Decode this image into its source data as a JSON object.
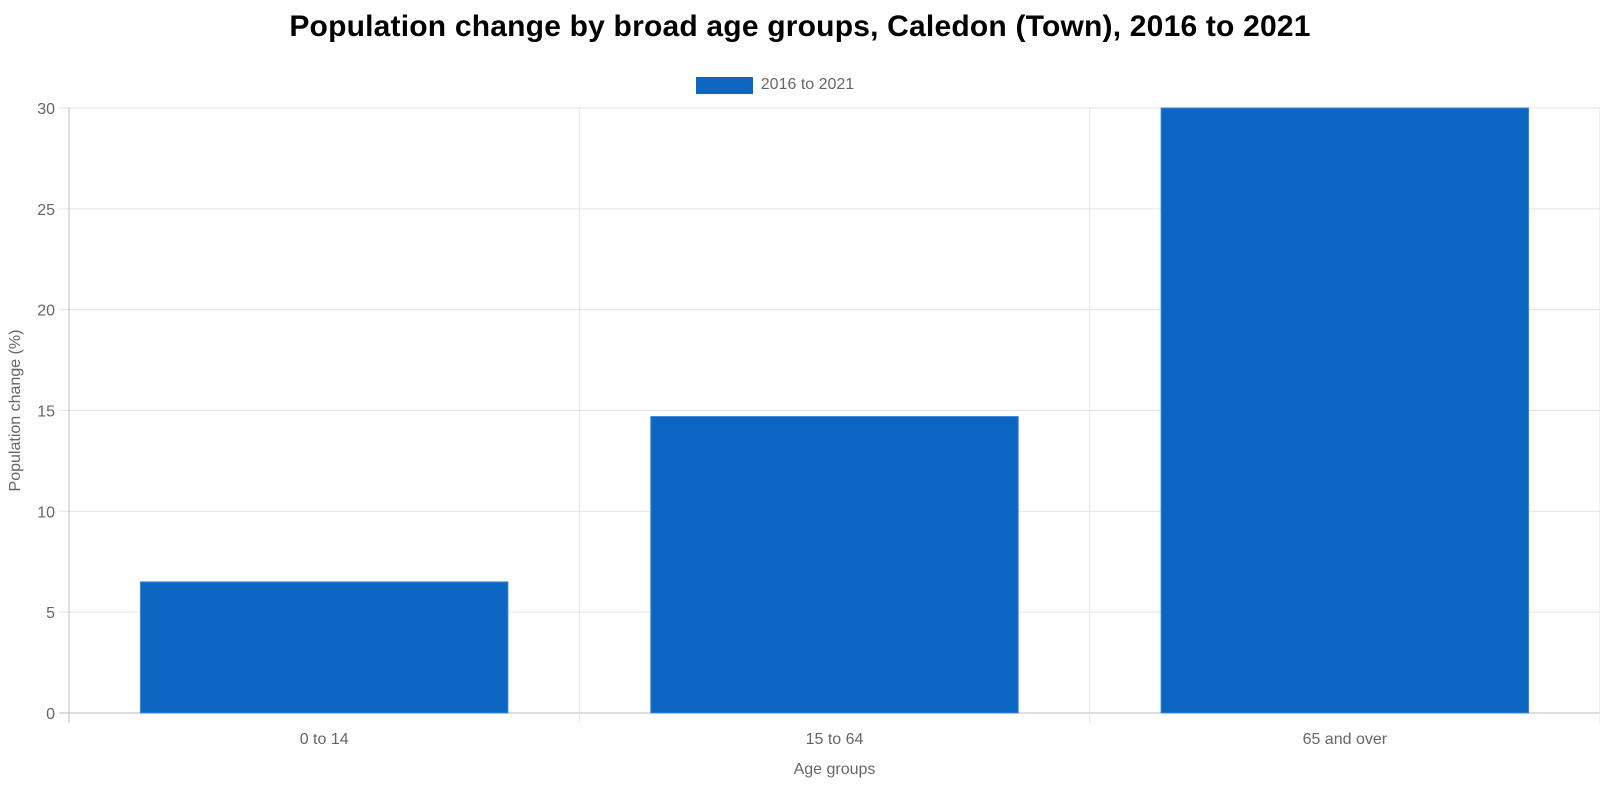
{
  "chart_data": {
    "type": "bar",
    "title": "Population change by broad age groups, Caledon (Town), 2016 to 2021",
    "xlabel": "Age groups",
    "ylabel": "Population change (%)",
    "categories": [
      "0 to 14",
      "15 to 64",
      "65 and over"
    ],
    "series": [
      {
        "name": "2016 to 2021",
        "values": [
          6.5,
          14.7,
          30.0
        ],
        "color": "#0c66c2"
      }
    ],
    "ylim": [
      0,
      30
    ],
    "yticks": [
      "0",
      "5",
      "10",
      "15",
      "20",
      "25",
      "30"
    ],
    "grid": true,
    "legend": "top-center"
  }
}
